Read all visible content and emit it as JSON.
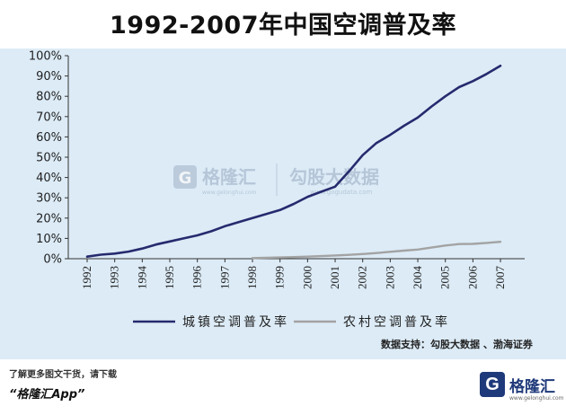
{
  "chart_data": {
    "type": "line",
    "title": "1992-2007年中国空调普及率",
    "categories": [
      "1992",
      "1993",
      "1994",
      "1995",
      "1996",
      "1997",
      "1998",
      "1999",
      "2000",
      "2001",
      "2002",
      "2003",
      "2004",
      "2005",
      "2006",
      "2007"
    ],
    "ylim": [
      0,
      100
    ],
    "y_ticks": [
      "0%",
      "10%",
      "20%",
      "30%",
      "40%",
      "50%",
      "60%",
      "70%",
      "80%",
      "90%",
      "100%"
    ],
    "grid": false,
    "legend_position": "bottom",
    "series": [
      {
        "name": "城镇空调普及率",
        "color": "#262a6e",
        "x": [
          1992,
          1992.5,
          1993,
          1993.5,
          1994,
          1994.5,
          1995,
          1995.5,
          1996,
          1996.5,
          1997,
          1997.5,
          1998,
          1998.5,
          1999,
          1999.5,
          2000,
          2000.5,
          2001,
          2001.5,
          2002,
          2002.5,
          2003,
          2003.5,
          2004,
          2004.5,
          2005,
          2005.5,
          2006,
          2006.5,
          2007
        ],
        "values": [
          1,
          2,
          2.5,
          3.5,
          5,
          7,
          8.5,
          10,
          11.5,
          13.5,
          16,
          18,
          20,
          22,
          24,
          27,
          30.5,
          33,
          35.5,
          43,
          51,
          57,
          61,
          65.5,
          69.5,
          75,
          80,
          84.5,
          87.5,
          91,
          95
        ]
      },
      {
        "name": "农村空调普及率",
        "color": "#a3a3a3",
        "x": [
          1998,
          1998.5,
          1999,
          1999.5,
          2000,
          2000.5,
          2001,
          2001.5,
          2002,
          2002.5,
          2003,
          2003.5,
          2004,
          2004.5,
          2005,
          2005.5,
          2006,
          2006.5,
          2007
        ],
        "values": [
          0.3,
          0.5,
          0.6,
          0.8,
          1,
          1.3,
          1.6,
          1.9,
          2.3,
          2.8,
          3.4,
          4,
          4.5,
          5.5,
          6.5,
          7.2,
          7.3,
          7.8,
          8.3
        ]
      }
    ]
  },
  "source_note": "数据支持：勾股大数据 、渤海证券",
  "watermark": {
    "brand_mark": "G",
    "brand_name": "格隆汇",
    "brand_url": "www.gelonghui.com",
    "partner_name": "勾股大数据",
    "partner_url": "www.gogudata.com"
  },
  "footer": {
    "note": "了解更多图文干货，请下载",
    "app": "“格隆汇App”",
    "logo_mark": "G",
    "logo_name": "格隆汇",
    "logo_url": "www.gelonghui.com"
  },
  "colors": {
    "panel_bg": "#dcebf6",
    "urban_line": "#262a6e",
    "rural_line": "#a3a3a3",
    "brand_blue": "#1f3a7a"
  }
}
